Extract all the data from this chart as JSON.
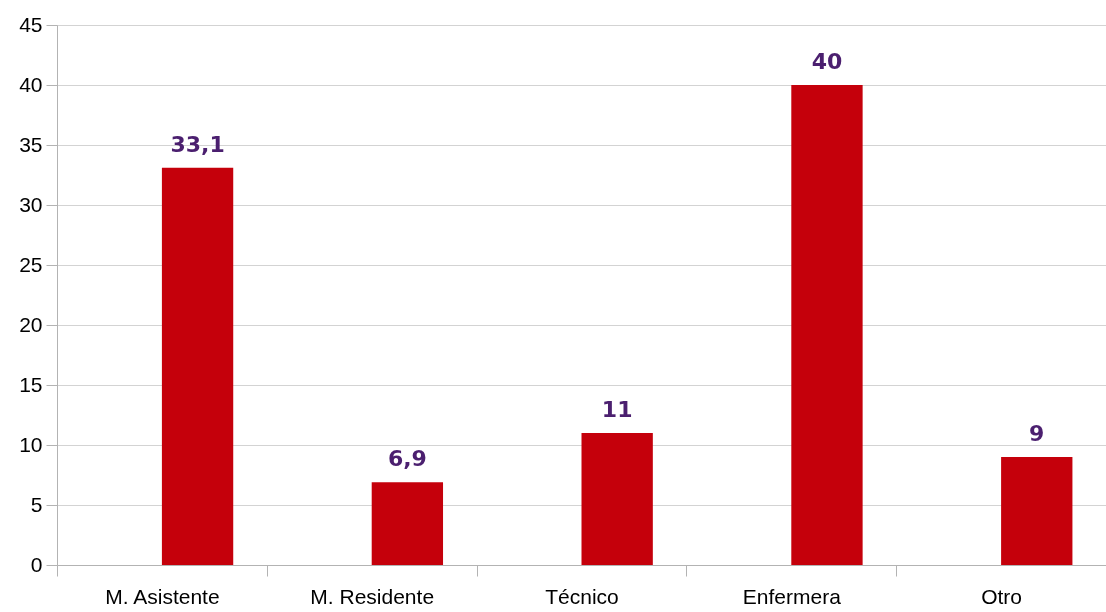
{
  "chart_data": {
    "type": "bar",
    "categories": [
      "M. Asistente",
      "M. Residente",
      "Técnico",
      "Enfermera",
      "Otro"
    ],
    "values": [
      33.1,
      6.9,
      11,
      40,
      9
    ],
    "color": "#c5000b",
    "value_labels": [
      "33,1",
      "6,9",
      "11",
      "40",
      "9"
    ],
    "ylim": [
      0,
      45
    ],
    "yticks": [
      0,
      5,
      10,
      15,
      20,
      25,
      30,
      35,
      40,
      45
    ],
    "grid": "y"
  }
}
